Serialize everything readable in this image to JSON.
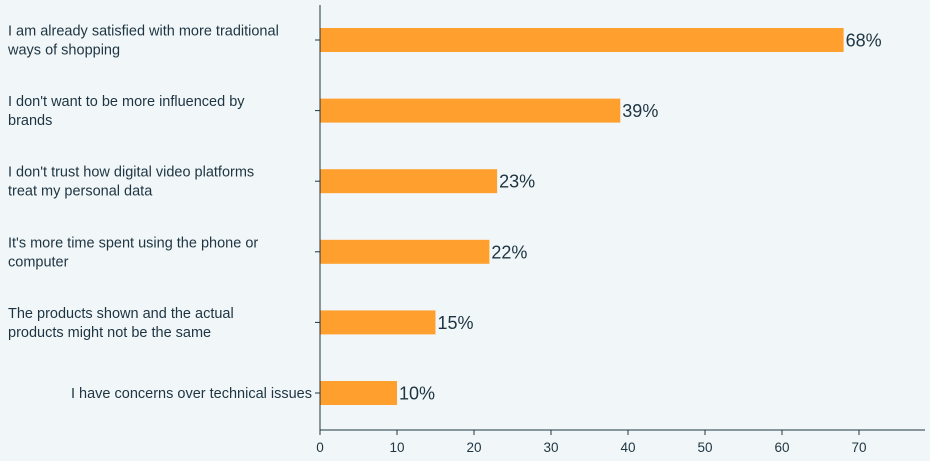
{
  "chart_data": {
    "type": "bar",
    "orientation": "horizontal",
    "categories": [
      [
        "I am already satisfied with more traditional",
        "ways of shopping"
      ],
      [
        "I don't want to be more influenced by",
        "brands"
      ],
      [
        "I don't trust how digital video platforms",
        "treat my personal data"
      ],
      [
        "It's more time spent using the phone or",
        "computer"
      ],
      [
        "The products shown and the actual",
        "products might not be the same"
      ],
      [
        "I have concerns over technical issues"
      ]
    ],
    "values": [
      68,
      39,
      23,
      22,
      15,
      10
    ],
    "value_labels": [
      "68%",
      "39%",
      "23%",
      "22%",
      "15%",
      "10%"
    ],
    "xlim": [
      0,
      79
    ],
    "xticks": [
      0,
      10,
      20,
      30,
      40,
      50,
      60,
      70
    ],
    "tick_labels": [
      "0",
      "10",
      "20",
      "30",
      "40",
      "50",
      "60",
      "70"
    ],
    "grid": false,
    "title": "",
    "xlabel": "",
    "ylabel": "",
    "colors": {
      "bar": "#ffa02e",
      "text": "#1e3442",
      "axis": "#1e3442",
      "background": "#f1f7f8"
    }
  }
}
